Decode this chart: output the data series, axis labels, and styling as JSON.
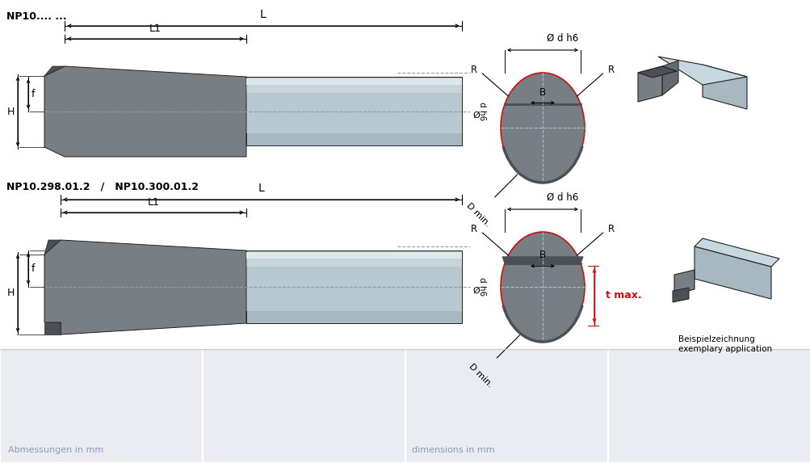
{
  "bg_color": "#ffffff",
  "panel_color": "#eaecf1",
  "panel_text_color": "#8a9ab8",
  "title1": "NP10.... ...",
  "title2": "NP10.298.01.2   /   NP10.300.01.2",
  "label_L": "L",
  "label_L1": "L1",
  "label_H": "H",
  "label_f": "f",
  "label_dh6": "Ø d h6",
  "label_dh6r": "Ø\nd h6",
  "label_B": "B",
  "label_R": "R",
  "label_Dmin": "D min.",
  "label_tmax": "t max.",
  "label_beispiel1": "Beispielzeichnung",
  "label_beispiel2": "exemplary application",
  "label_abm": "Abmessungen in mm",
  "label_dim": "dimensions in mm",
  "c_insert": "#777f85",
  "c_insert_dark": "#4a5055",
  "c_insert_mid": "#636b70",
  "c_shank": "#a8b8c0",
  "c_shank_light": "#c8d8e0",
  "c_shank_highlight": "#dde8ed",
  "c_shank_dark": "#8898a0",
  "c_line": "#000000",
  "c_dim": "#000000",
  "c_dash": "#999999",
  "c_red": "#cc1111",
  "c_border": "#222222"
}
